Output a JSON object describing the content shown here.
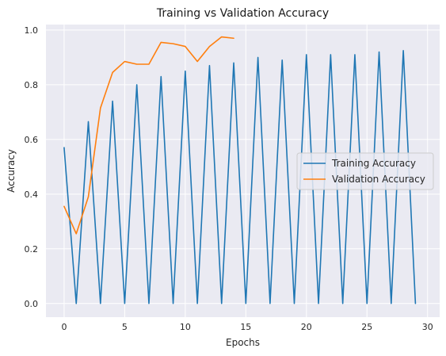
{
  "chart_data": {
    "type": "line",
    "title": "Training vs Validation Accuracy",
    "xlabel": "Epochs",
    "ylabel": "Accuracy",
    "xlim": [
      -1.5,
      31
    ],
    "ylim": [
      -0.05,
      1.02
    ],
    "xticks": [
      0,
      5,
      10,
      15,
      20,
      25,
      30
    ],
    "xtick_labels": [
      "0",
      "5",
      "10",
      "15",
      "20",
      "25",
      "30"
    ],
    "yticks": [
      0.0,
      0.2,
      0.4,
      0.6,
      0.8,
      1.0
    ],
    "ytick_labels": [
      "0.0",
      "0.2",
      "0.4",
      "0.6",
      "0.8",
      "1.0"
    ],
    "grid": true,
    "legend_position": "center-right",
    "series": [
      {
        "name": "Training Accuracy",
        "color": "#1f77b4",
        "x": [
          0,
          1,
          2,
          3,
          4,
          5,
          6,
          7,
          8,
          9,
          10,
          11,
          12,
          13,
          14,
          15,
          16,
          17,
          18,
          19,
          20,
          21,
          22,
          23,
          24,
          25,
          26,
          27,
          28,
          29
        ],
        "y": [
          0.57,
          0.0,
          0.665,
          0.0,
          0.74,
          0.0,
          0.8,
          0.0,
          0.83,
          0.0,
          0.85,
          0.0,
          0.87,
          0.0,
          0.88,
          0.0,
          0.9,
          0.0,
          0.89,
          0.0,
          0.91,
          0.0,
          0.91,
          0.0,
          0.91,
          0.0,
          0.92,
          0.0,
          0.925,
          0.0
        ]
      },
      {
        "name": "Validation Accuracy",
        "color": "#ff7f0e",
        "x": [
          0,
          1,
          2,
          3,
          4,
          5,
          6,
          7,
          8,
          9,
          10,
          11,
          12,
          13,
          14
        ],
        "y": [
          0.355,
          0.255,
          0.39,
          0.715,
          0.845,
          0.885,
          0.875,
          0.875,
          0.955,
          0.95,
          0.94,
          0.885,
          0.94,
          0.975,
          0.97
        ]
      }
    ]
  }
}
